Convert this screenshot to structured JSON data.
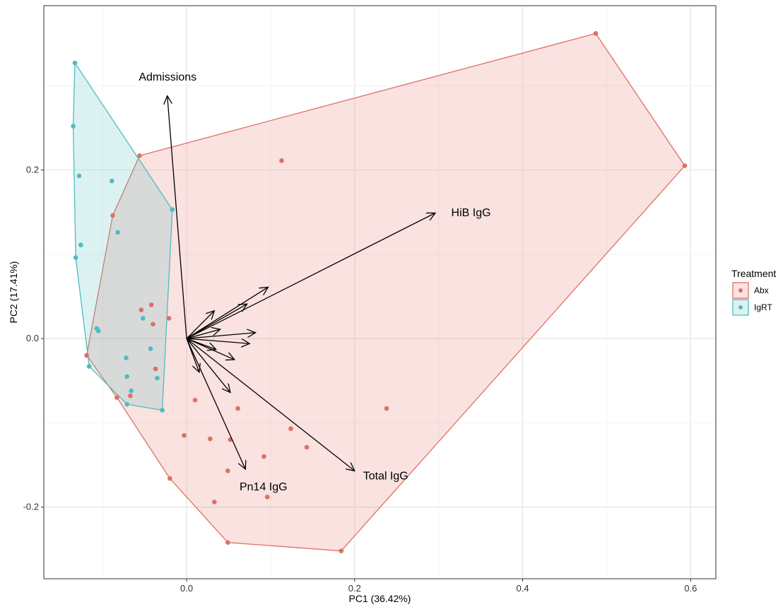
{
  "chart_data": {
    "type": "scatter",
    "xlabel": "PC1 (36.42%)",
    "ylabel": "PC2 (17.41%)",
    "xlim": [
      -0.17,
      0.63
    ],
    "ylim": [
      -0.285,
      0.395
    ],
    "x_ticks": [
      0.0,
      0.2,
      0.4,
      0.6
    ],
    "x_tick_labels": [
      "0.0",
      "0.2",
      "0.4",
      "0.6"
    ],
    "y_ticks": [
      -0.2,
      0.0,
      0.2
    ],
    "y_tick_labels": [
      "-0.2",
      "0.0",
      "0.2"
    ],
    "grid": true,
    "legend": {
      "title": "Treatment",
      "placement": "right",
      "entries": [
        "Abx",
        "IgRT"
      ]
    },
    "colors": {
      "Abx": "#e06f66",
      "IgRT": "#4fbcc0",
      "arrow": "#000000"
    },
    "series": [
      {
        "name": "Abx",
        "points": [
          [
            0.487,
            0.362
          ],
          [
            0.593,
            0.205
          ],
          [
            0.113,
            0.211
          ],
          [
            -0.056,
            0.217
          ],
          [
            -0.088,
            0.146
          ],
          [
            -0.042,
            0.04
          ],
          [
            -0.054,
            0.034
          ],
          [
            -0.021,
            0.024
          ],
          [
            -0.04,
            0.017
          ],
          [
            -0.037,
            -0.036
          ],
          [
            -0.067,
            -0.068
          ],
          [
            -0.083,
            -0.07
          ],
          [
            -0.119,
            -0.02
          ],
          [
            0.01,
            -0.073
          ],
          [
            0.061,
            -0.083
          ],
          [
            0.238,
            -0.083
          ],
          [
            0.124,
            -0.107
          ],
          [
            0.143,
            -0.129
          ],
          [
            -0.003,
            -0.115
          ],
          [
            0.028,
            -0.119
          ],
          [
            0.052,
            -0.12
          ],
          [
            0.092,
            -0.14
          ],
          [
            0.049,
            -0.157
          ],
          [
            0.096,
            -0.188
          ],
          [
            -0.02,
            -0.166
          ],
          [
            0.033,
            -0.194
          ],
          [
            0.049,
            -0.242
          ],
          [
            0.184,
            -0.252
          ]
        ],
        "hull": [
          [
            0.487,
            0.362
          ],
          [
            0.593,
            0.205
          ],
          [
            0.184,
            -0.252
          ],
          [
            0.049,
            -0.242
          ],
          [
            -0.02,
            -0.166
          ],
          [
            -0.083,
            -0.07
          ],
          [
            -0.119,
            -0.02
          ],
          [
            -0.088,
            0.146
          ],
          [
            -0.056,
            0.217
          ]
        ]
      },
      {
        "name": "IgRT",
        "points": [
          [
            -0.133,
            0.327
          ],
          [
            -0.135,
            0.252
          ],
          [
            -0.128,
            0.193
          ],
          [
            -0.089,
            0.187
          ],
          [
            -0.017,
            0.153
          ],
          [
            -0.082,
            0.126
          ],
          [
            -0.126,
            0.111
          ],
          [
            -0.132,
            0.096
          ],
          [
            -0.107,
            0.012
          ],
          [
            -0.105,
            0.009
          ],
          [
            -0.052,
            0.024
          ],
          [
            -0.043,
            -0.012
          ],
          [
            -0.072,
            -0.023
          ],
          [
            -0.071,
            -0.045
          ],
          [
            -0.035,
            -0.047
          ],
          [
            -0.066,
            -0.062
          ],
          [
            -0.071,
            -0.078
          ],
          [
            -0.116,
            -0.033
          ],
          [
            -0.029,
            -0.085
          ]
        ],
        "hull": [
          [
            -0.133,
            0.327
          ],
          [
            -0.017,
            0.153
          ],
          [
            -0.029,
            -0.085
          ],
          [
            -0.071,
            -0.078
          ],
          [
            -0.116,
            -0.033
          ],
          [
            -0.132,
            0.096
          ],
          [
            -0.135,
            0.252
          ]
        ]
      }
    ],
    "loadings": {
      "origin": [
        0.0,
        0.0
      ],
      "vectors": [
        {
          "label": "Admissions",
          "end": [
            -0.023,
            0.288
          ],
          "label_pos": [
            -0.057,
            0.306
          ]
        },
        {
          "label": "HiB IgG",
          "end": [
            0.296,
            0.149
          ],
          "label_pos": [
            0.315,
            0.145
          ]
        },
        {
          "label": "Total IgG",
          "end": [
            0.2,
            -0.157
          ],
          "label_pos": [
            0.21,
            -0.167
          ]
        },
        {
          "label": "Pn14 IgG",
          "end": [
            0.07,
            -0.155
          ],
          "label_pos": [
            0.063,
            -0.18
          ]
        },
        {
          "label": "",
          "end": [
            0.097,
            0.061
          ]
        },
        {
          "label": "",
          "end": [
            0.072,
            0.041
          ]
        },
        {
          "label": "",
          "end": [
            0.033,
            0.033
          ]
        },
        {
          "label": "",
          "end": [
            0.04,
            0.011
          ]
        },
        {
          "label": "",
          "end": [
            0.082,
            0.007
          ]
        },
        {
          "label": "",
          "end": [
            0.075,
            -0.006
          ]
        },
        {
          "label": "",
          "end": [
            0.057,
            -0.025
          ]
        },
        {
          "label": "",
          "end": [
            0.052,
            -0.064
          ]
        },
        {
          "label": "",
          "end": [
            0.015,
            -0.04
          ]
        },
        {
          "label": "",
          "end": [
            0.035,
            -0.013
          ]
        }
      ]
    }
  }
}
